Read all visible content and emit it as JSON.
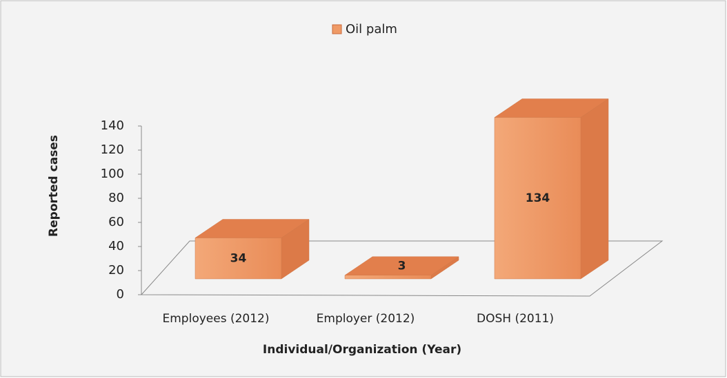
{
  "chart_data": {
    "type": "bar3d",
    "legend": "Oil palm",
    "categories": [
      "Employees (2012)",
      "Employer (2012)",
      "DOSH (2011)"
    ],
    "values": [
      34,
      3,
      134
    ],
    "color": "#ef9a66",
    "ylim": [
      0,
      140
    ],
    "yticks": [
      0,
      20,
      40,
      60,
      80,
      100,
      120,
      140
    ],
    "xlabel": "Individual/Organization (Year)",
    "ylabel": "Reported cases",
    "legend_position": "top"
  }
}
